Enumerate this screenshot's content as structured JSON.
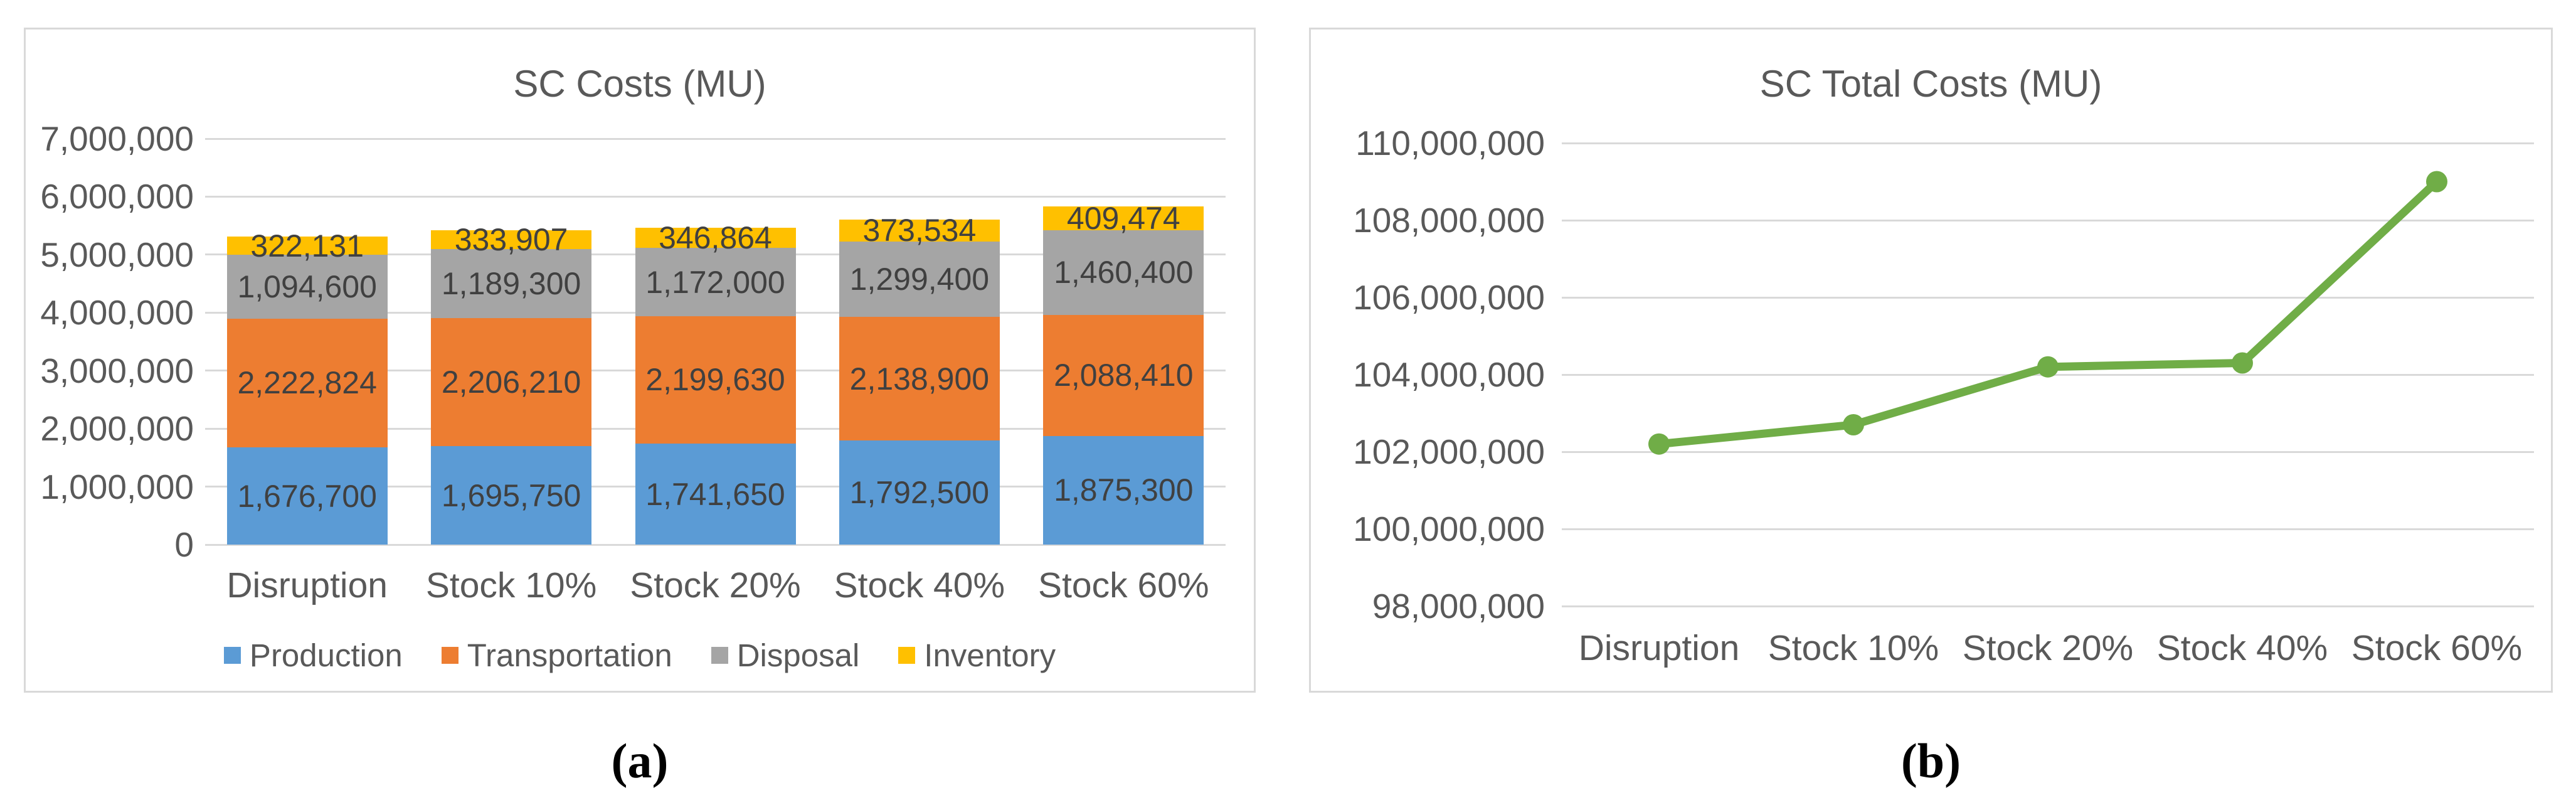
{
  "figure": {
    "background": "#FFFFFF",
    "captions": [
      "(a)",
      "(b)"
    ]
  },
  "chart_data": [
    {
      "type": "bar",
      "stacked": true,
      "title": "SC Costs (MU)",
      "categories": [
        "Disruption",
        "Stock 10%",
        "Stock 20%",
        "Stock 40%",
        "Stock 60%"
      ],
      "series": [
        {
          "name": "Production",
          "color": "#5B9BD5",
          "values": [
            1676700,
            1695750,
            1741650,
            1792500,
            1875300
          ],
          "value_labels": [
            "1,676,700",
            "1,695,750",
            "1,741,650",
            "1,792,500",
            "1,875,300"
          ]
        },
        {
          "name": "Transportation",
          "color": "#ED7D31",
          "values": [
            2222824,
            2206210,
            2199630,
            2138900,
            2088410
          ],
          "value_labels": [
            "2,222,824",
            "2,206,210",
            "2,199,630",
            "2,138,900",
            "2,088,410"
          ]
        },
        {
          "name": "Disposal",
          "color": "#A5A5A5",
          "values": [
            1094600,
            1189300,
            1172000,
            1299400,
            1460400
          ],
          "value_labels": [
            "1,094,600",
            "1,189,300",
            "1,172,000",
            "1,299,400",
            "1,460,400"
          ]
        },
        {
          "name": "Inventory",
          "color": "#FFC000",
          "values": [
            322131,
            333907,
            346864,
            373534,
            409474
          ],
          "value_labels": [
            "322,131",
            "333,907",
            "346,864",
            "373,534",
            "409,474"
          ]
        }
      ],
      "ylim": [
        0,
        7000000
      ],
      "ytick_step": 1000000,
      "ytick_labels": [
        "0",
        "1,000,000",
        "2,000,000",
        "3,000,000",
        "4,000,000",
        "5,000,000",
        "6,000,000",
        "7,000,000"
      ],
      "grid": true,
      "legend_position": "bottom"
    },
    {
      "type": "line",
      "title": "SC Total Costs (MU)",
      "categories": [
        "Disruption",
        "Stock 10%",
        "Stock 20%",
        "Stock 40%",
        "Stock 60%"
      ],
      "series": [
        {
          "name": "SC Total Costs",
          "color": "#70AD47",
          "values": [
            102200000,
            102700000,
            104200000,
            104300000,
            109000000
          ]
        }
      ],
      "ylim": [
        98000000,
        110000000
      ],
      "ytick_step": 2000000,
      "ytick_labels": [
        "98,000,000",
        "100,000,000",
        "102,000,000",
        "104,000,000",
        "106,000,000",
        "108,000,000",
        "110,000,000"
      ],
      "grid": true,
      "legend_position": "none"
    }
  ],
  "colors": {
    "grid": "#D9D9D9",
    "panel_border": "#D9D9D9",
    "axis_text": "#595959",
    "title_text": "#595959",
    "data_label_text": "#404040",
    "line": "#70AD47"
  }
}
